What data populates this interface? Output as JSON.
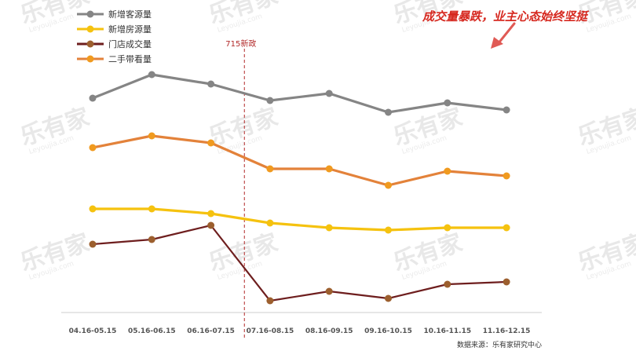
{
  "watermark": {
    "brand": "乐有家",
    "domain": "Leyoujia.com"
  },
  "headline": "成交量暴跌，业主心态始终坚挺",
  "policy_marker": {
    "label": "715新政",
    "after_category_index": 2
  },
  "source": "数据来源：乐有家研究中心",
  "colors": {
    "buyer_listings": "#858585",
    "house_listings": "#f5c20f",
    "store_deals": "#6e1e1e",
    "viewings": "#e3823a",
    "policy_line": "#b22a2a",
    "headline": "#d6281f"
  },
  "chart_data": {
    "type": "line",
    "title": "",
    "xlabel": "",
    "ylabel": "",
    "categories": [
      "04.16-05.15",
      "05.16-06.15",
      "06.16-07.15",
      "07.16-08.15",
      "08.16-09.15",
      "09.16-10.15",
      "10.16-11.15",
      "11.16-12.15"
    ],
    "ylim": [
      0,
      100
    ],
    "grid": false,
    "y_axis_visible": false,
    "legend_position": "top-left",
    "series": [
      {
        "name": "新增客源量",
        "key": "buyer_listings",
        "marker_color": "#858585",
        "values": [
          90,
          100,
          96,
          89,
          92,
          84,
          88,
          85
        ]
      },
      {
        "name": "新增房源量",
        "key": "house_listings",
        "marker_color": "#f5c20f",
        "values": [
          43,
          43,
          41,
          37,
          35,
          34,
          35,
          35
        ]
      },
      {
        "name": "门店成交量",
        "key": "store_deals",
        "marker_color": "#9c5f2e",
        "values": [
          28,
          30,
          36,
          4,
          8,
          5,
          11,
          12
        ]
      },
      {
        "name": "二手带看量",
        "key": "viewings",
        "marker_color": "#f09a1f",
        "values": [
          69,
          74,
          71,
          60,
          60,
          53,
          59,
          57
        ]
      }
    ]
  }
}
